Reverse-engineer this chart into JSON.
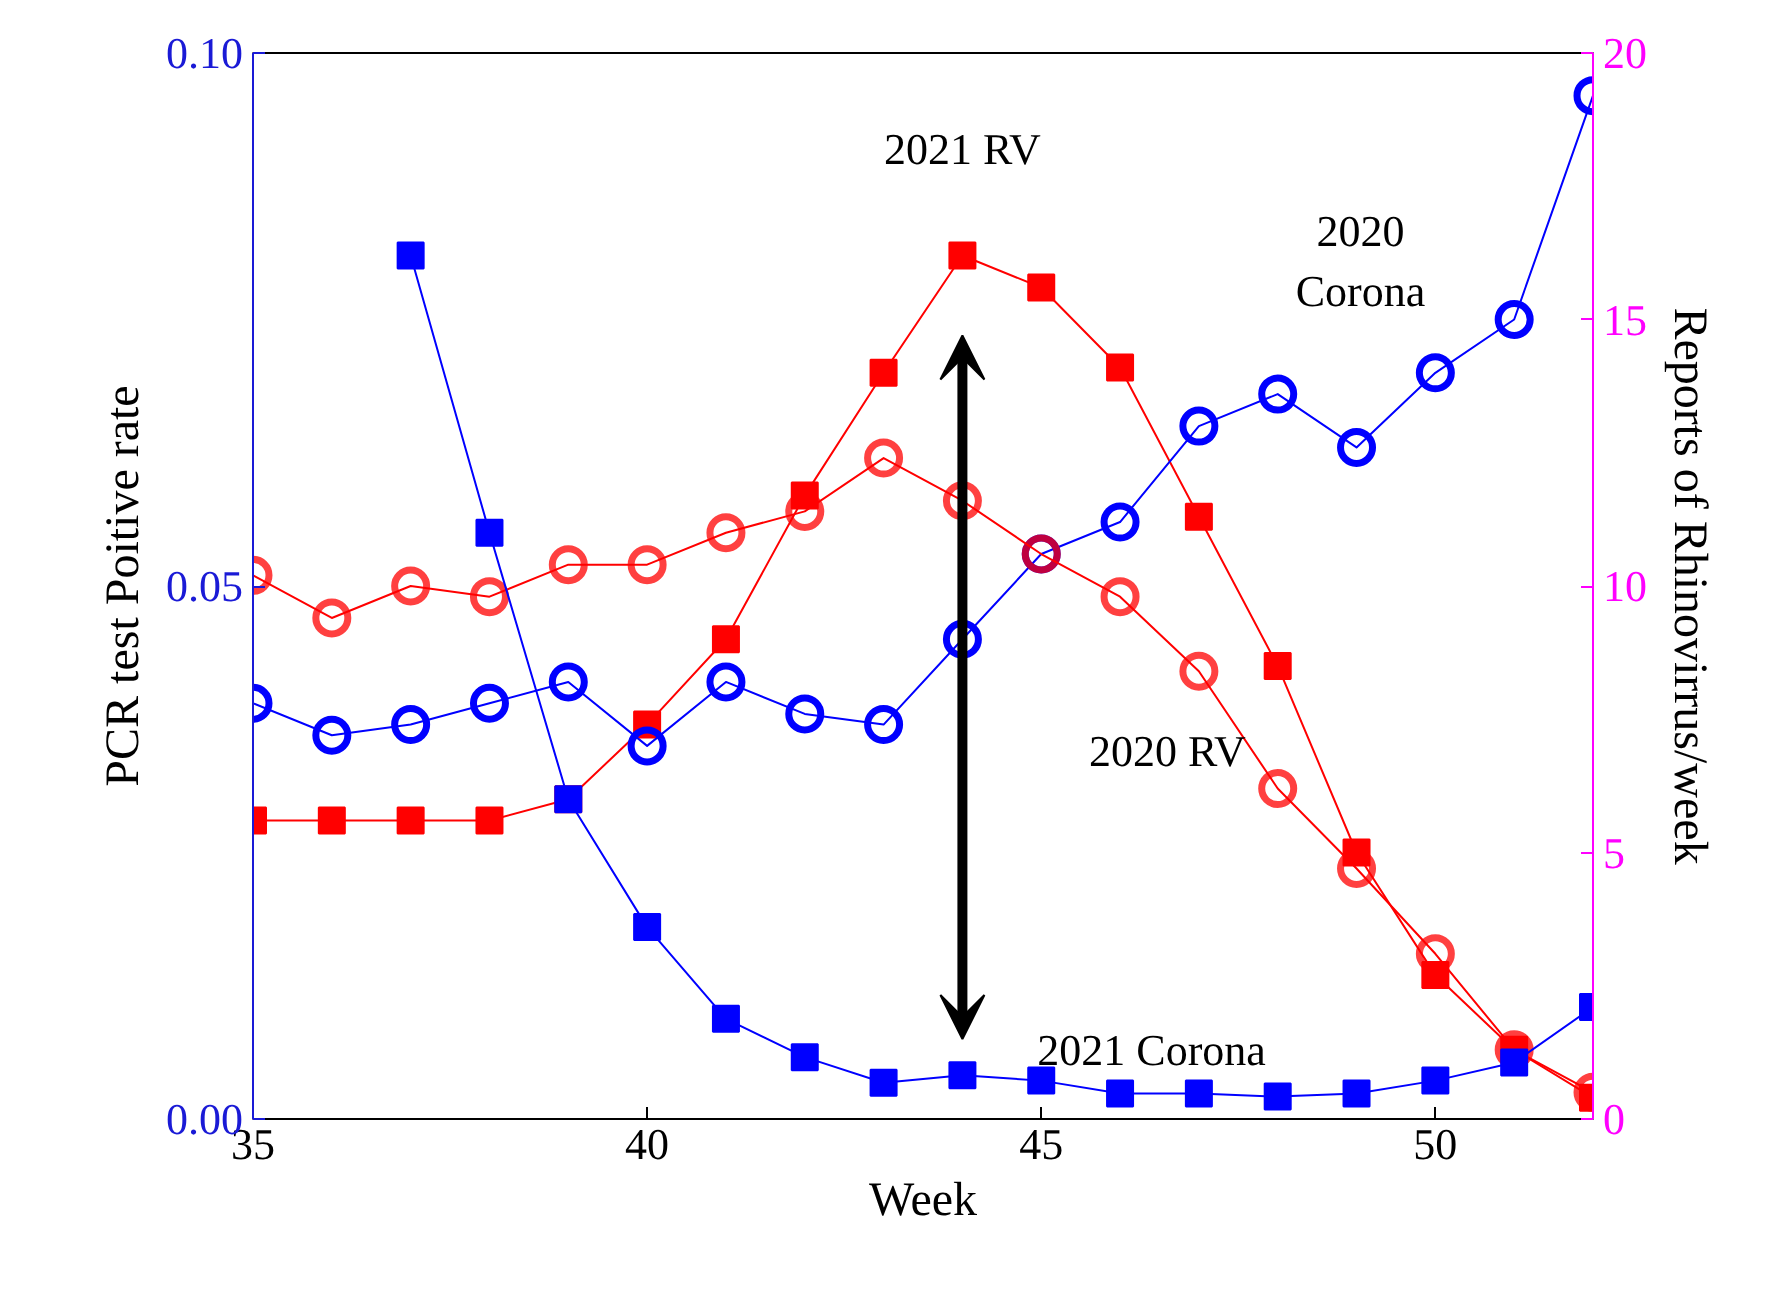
{
  "chart_data": {
    "type": "line",
    "xlabel": "Week",
    "ylabel": "PCR test Poitive rate",
    "y2label": "Reports of Rhinovirrus/week",
    "x": [
      35,
      36,
      37,
      38,
      39,
      40,
      41,
      42,
      43,
      44,
      45,
      46,
      47,
      48,
      49,
      50,
      51,
      52
    ],
    "xlim": [
      35,
      52
    ],
    "xticks": [
      35,
      40,
      45,
      50
    ],
    "ylim": [
      0,
      0.1
    ],
    "yticks": [
      {
        "value": 0,
        "label": "0.00"
      },
      {
        "value": 0.05,
        "label": "0.05"
      },
      {
        "value": 0.1,
        "label": "0.10"
      }
    ],
    "y2lim": [
      0,
      20
    ],
    "y2ticks": [
      0,
      5,
      10,
      15,
      20
    ],
    "grid": false,
    "series": [
      {
        "name": "2021 RV",
        "color": "#ff0000",
        "axis": "y2",
        "marker": "square",
        "values": [
          5.6,
          5.6,
          5.6,
          5.6,
          6.0,
          7.4,
          9.0,
          11.7,
          14.0,
          16.2,
          15.6,
          14.1,
          11.3,
          8.5,
          5.0,
          2.7,
          1.3,
          0.4
        ]
      },
      {
        "name": "2020 Corona",
        "color": "#0000ff",
        "marker": "circle",
        "values": [
          0.039,
          0.036,
          0.037,
          0.039,
          0.041,
          0.035,
          0.041,
          0.038,
          0.037,
          0.045,
          0.053,
          0.056,
          0.065,
          0.068,
          0.063,
          0.07,
          0.075,
          0.096
        ]
      },
      {
        "name": "2020 RV",
        "color": "#ff0000",
        "axis": "y2",
        "marker": "circle",
        "values": [
          10.2,
          9.4,
          10.0,
          9.8,
          10.4,
          10.4,
          11.0,
          11.4,
          12.4,
          11.6,
          10.6,
          9.8,
          8.4,
          6.2,
          4.7,
          3.1,
          1.3,
          0.5
        ]
      },
      {
        "name": "2021 Corona",
        "color": "#0000ff",
        "marker": "square",
        "values": [
          null,
          null,
          0.081,
          0.055,
          0.03,
          0.018,
          0.0094,
          0.0058,
          0.0034,
          0.0041,
          0.0036,
          0.0024,
          0.0024,
          0.0021,
          0.0024,
          0.0036,
          0.0053,
          0.0105
        ]
      }
    ]
  }
}
